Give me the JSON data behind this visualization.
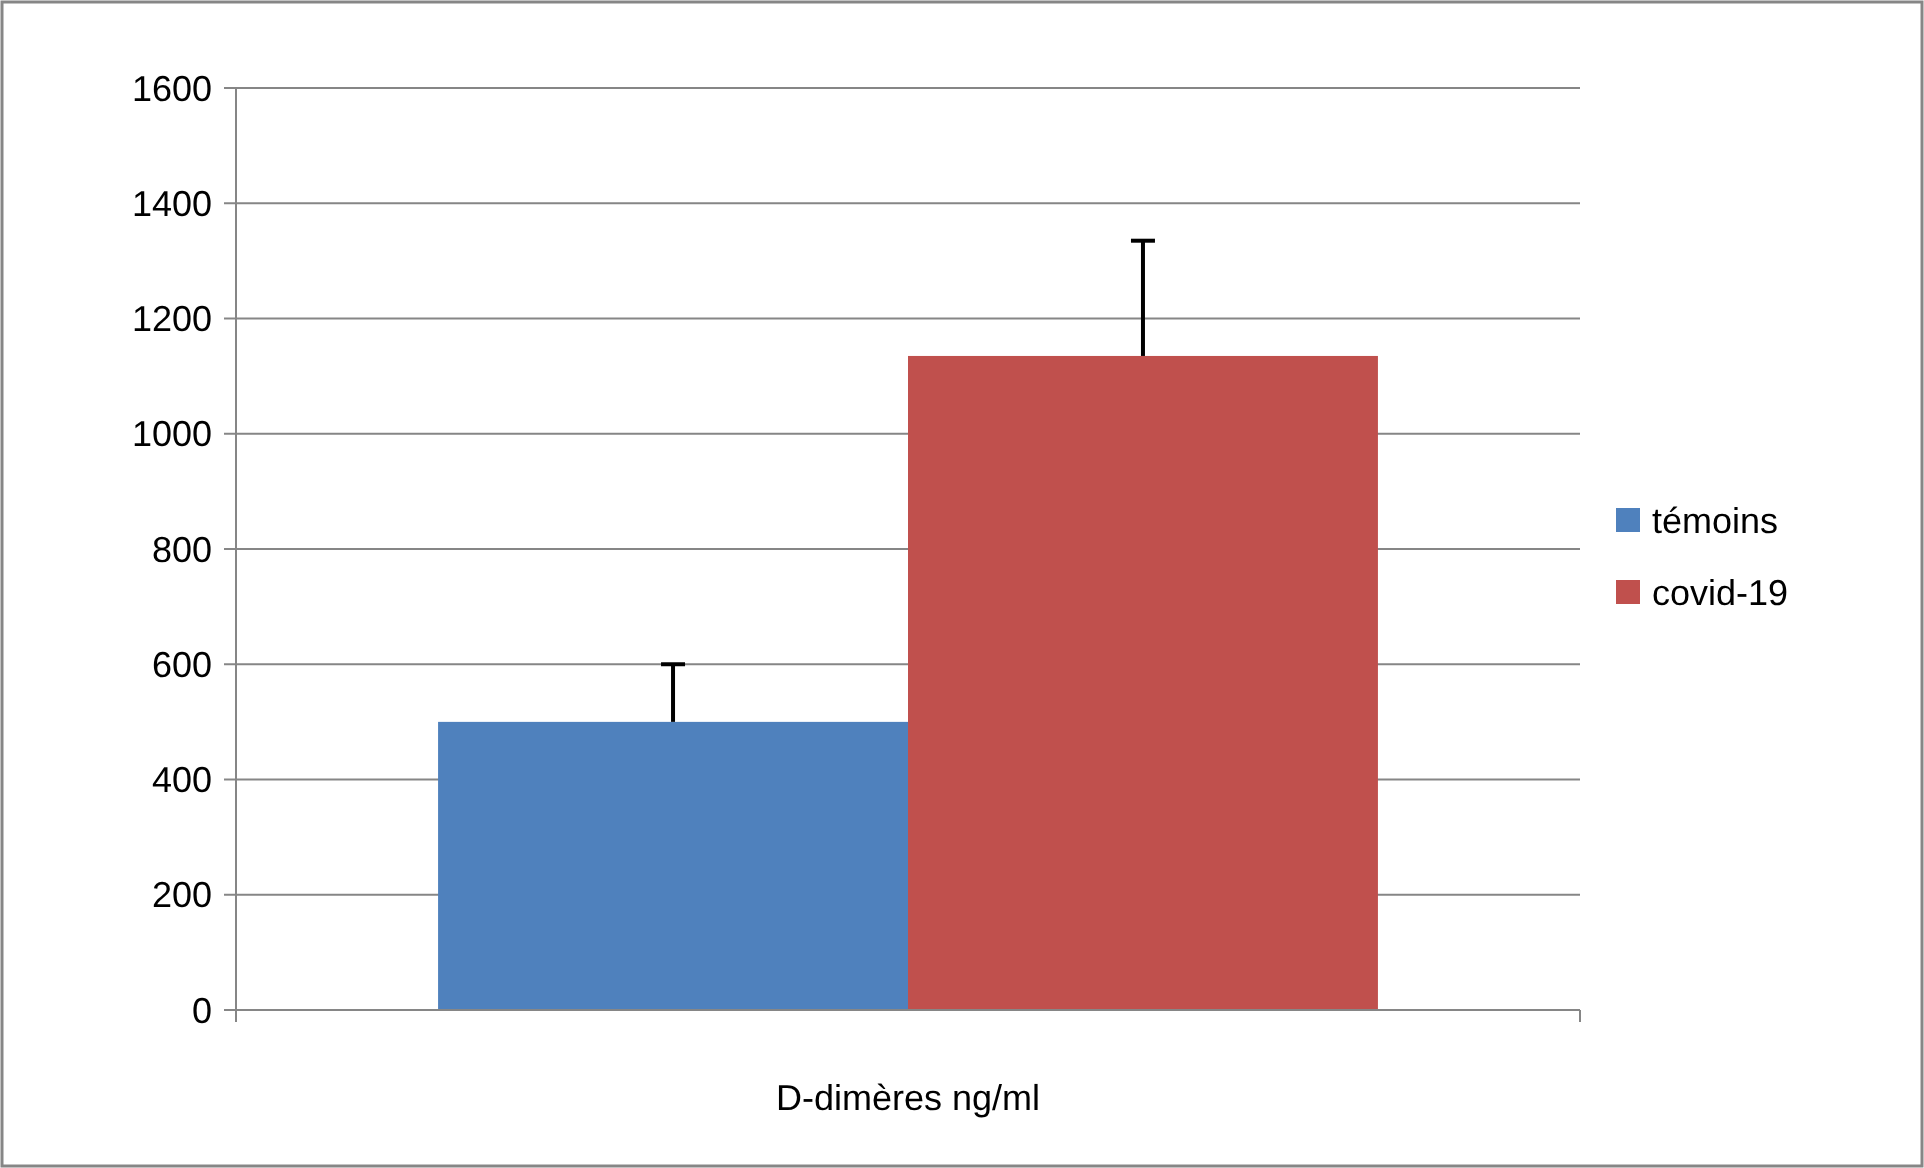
{
  "chart_data": {
    "type": "bar",
    "categories": [
      "D-dimères ng/ml"
    ],
    "series": [
      {
        "name": "témoins",
        "color": "#4f81bd",
        "values": [
          500
        ],
        "errors": [
          [
            500,
            600
          ]
        ]
      },
      {
        "name": "covid-19",
        "color": "#c0504d",
        "values": [
          1135
        ],
        "errors": [
          [
            1135,
            1335
          ]
        ]
      }
    ],
    "ylim": [
      0,
      1600
    ],
    "yticks": [
      0,
      200,
      400,
      600,
      800,
      1000,
      1200,
      1400,
      1600
    ],
    "grid": "y",
    "legend": "right"
  }
}
